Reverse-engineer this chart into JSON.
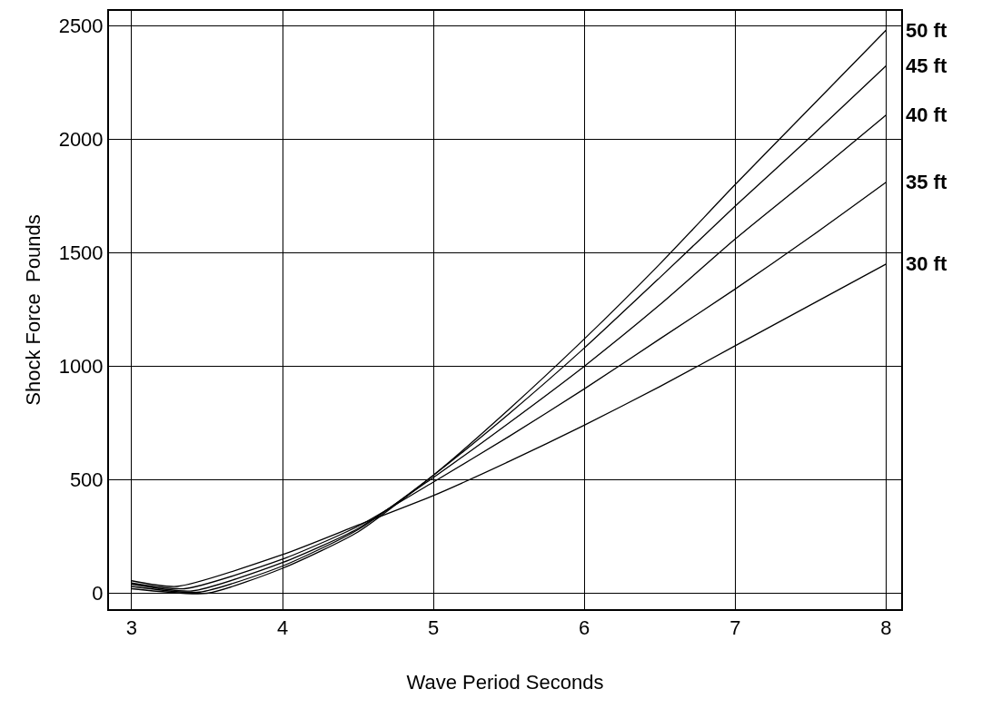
{
  "chart_data": {
    "type": "line",
    "xlabel": "Wave Period Seconds",
    "ylabel": "Shock Force  Pounds",
    "xlim": [
      2.85,
      8.1
    ],
    "xticks": [
      3,
      4,
      5,
      6,
      7,
      8
    ],
    "ylim": [
      -70,
      2565
    ],
    "yticks": [
      0,
      500,
      1000,
      1500,
      2000,
      2500
    ],
    "grid": true,
    "legend": false,
    "marker": "none",
    "line_style": "solid",
    "series": [
      {
        "name": "30 ft",
        "color": "#000000",
        "x": [
          3,
          3.3,
          4,
          4.5,
          5,
          5.5,
          6,
          6.5,
          7,
          7.5,
          8
        ],
        "values": [
          55,
          30,
          170,
          300,
          430,
          580,
          740,
          910,
          1090,
          1270,
          1450
        ]
      },
      {
        "name": "35 ft",
        "color": "#000000",
        "x": [
          3,
          3.35,
          4,
          4.5,
          5,
          5.5,
          6,
          6.5,
          7,
          7.5,
          8
        ],
        "values": [
          45,
          20,
          150,
          295,
          490,
          690,
          900,
          1120,
          1340,
          1570,
          1810
        ]
      },
      {
        "name": "40 ft",
        "color": "#000000",
        "x": [
          3,
          3.4,
          4,
          4.5,
          5,
          5.5,
          6,
          6.5,
          7,
          7.5,
          8
        ],
        "values": [
          40,
          10,
          135,
          285,
          510,
          750,
          1000,
          1270,
          1560,
          1830,
          2106
        ]
      },
      {
        "name": "45 ft",
        "color": "#000000",
        "x": [
          3,
          3.45,
          4,
          4.5,
          5,
          5.5,
          6,
          6.5,
          7,
          7.5,
          8
        ],
        "values": [
          30,
          5,
          120,
          280,
          520,
          790,
          1080,
          1390,
          1705,
          2010,
          2323
        ]
      },
      {
        "name": "50 ft",
        "color": "#000000",
        "x": [
          3,
          3.5,
          4,
          4.5,
          5,
          5.5,
          6,
          6.5,
          7,
          7.5,
          8
        ],
        "values": [
          20,
          0,
          110,
          270,
          520,
          810,
          1120,
          1450,
          1800,
          2140,
          2480
        ]
      }
    ]
  }
}
